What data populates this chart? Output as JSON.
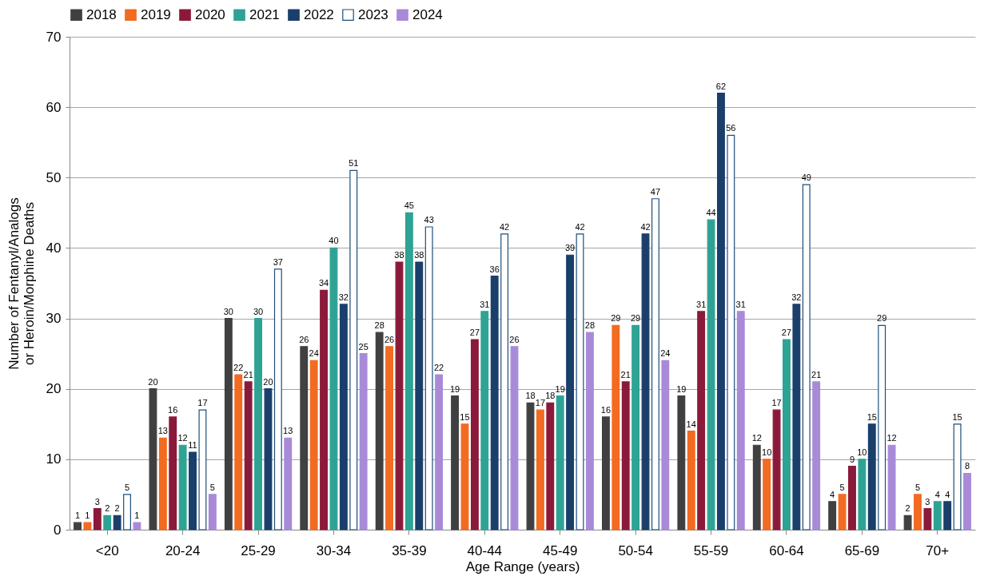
{
  "chart_data": {
    "type": "bar",
    "xlabel": "Age Range (years)",
    "ylabel": "Number of Fentanyl/Analogs or Heroin/Morphine Deaths",
    "categories": [
      "<20",
      "20-24",
      "25-29",
      "30-34",
      "35-39",
      "40-44",
      "45-49",
      "50-54",
      "55-59",
      "60-64",
      "65-69",
      "70+"
    ],
    "series": [
      {
        "name": "2018",
        "color": "#404040",
        "values": [
          1,
          20,
          30,
          26,
          28,
          19,
          18,
          16,
          19,
          12,
          4,
          2
        ]
      },
      {
        "name": "2019",
        "color": "#f26b21",
        "values": [
          1,
          13,
          22,
          24,
          26,
          15,
          17,
          29,
          14,
          10,
          5,
          5
        ]
      },
      {
        "name": "2020",
        "color": "#8b1a3a",
        "values": [
          3,
          16,
          21,
          34,
          38,
          27,
          18,
          21,
          31,
          17,
          9,
          3
        ]
      },
      {
        "name": "2021",
        "color": "#2ea394",
        "values": [
          2,
          12,
          30,
          40,
          45,
          31,
          19,
          29,
          44,
          27,
          10,
          4
        ]
      },
      {
        "name": "2022",
        "color": "#1a3f6b",
        "values": [
          2,
          11,
          20,
          32,
          38,
          36,
          39,
          42,
          62,
          32,
          15,
          4
        ]
      },
      {
        "name": "2023",
        "color": "#ffffff",
        "values": [
          5,
          17,
          37,
          51,
          43,
          42,
          42,
          47,
          56,
          49,
          29,
          15
        ]
      },
      {
        "name": "2024",
        "color": "#a98ad8",
        "values": [
          1,
          5,
          13,
          25,
          22,
          26,
          28,
          24,
          31,
          21,
          12,
          8
        ]
      }
    ],
    "ylim": [
      0,
      70
    ],
    "yticks": [
      0,
      10,
      20,
      30,
      40,
      50,
      60,
      70
    ],
    "grid": "y",
    "legend": "top",
    "data_labels": true
  }
}
